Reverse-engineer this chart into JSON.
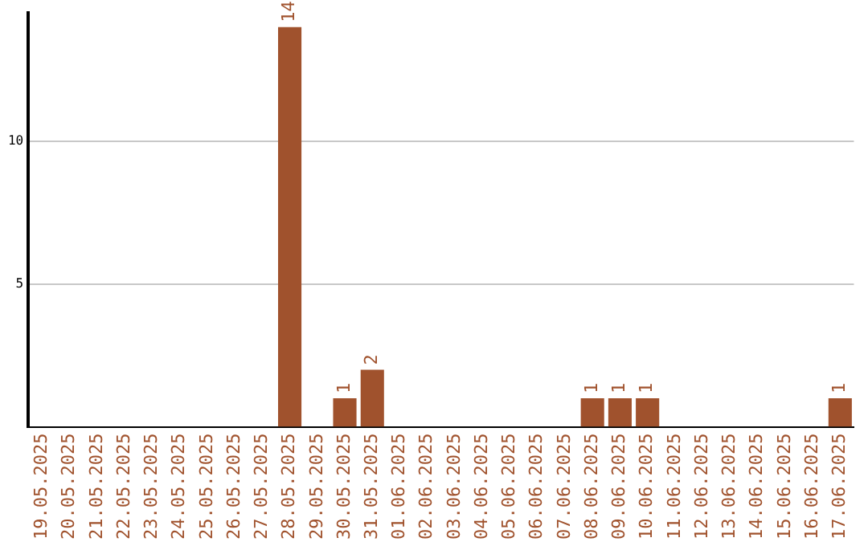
{
  "chart_data": {
    "type": "bar",
    "categories": [
      "19.05.2025",
      "20.05.2025",
      "21.05.2025",
      "22.05.2025",
      "23.05.2025",
      "24.05.2025",
      "25.05.2025",
      "26.05.2025",
      "27.05.2025",
      "28.05.2025",
      "29.05.2025",
      "30.05.2025",
      "31.05.2025",
      "01.06.2025",
      "02.06.2025",
      "03.06.2025",
      "04.06.2025",
      "05.06.2025",
      "06.06.2025",
      "07.06.2025",
      "08.06.2025",
      "09.06.2025",
      "10.06.2025",
      "11.06.2025",
      "12.06.2025",
      "13.06.2025",
      "14.06.2025",
      "15.06.2025",
      "16.06.2025",
      "17.06.2025"
    ],
    "values": [
      0,
      0,
      0,
      0,
      0,
      0,
      0,
      0,
      0,
      14,
      0,
      1,
      2,
      0,
      0,
      0,
      0,
      0,
      0,
      0,
      1,
      1,
      1,
      0,
      0,
      0,
      0,
      0,
      0,
      1
    ],
    "value_labels": [
      null,
      null,
      null,
      null,
      null,
      null,
      null,
      null,
      null,
      "14",
      null,
      "1",
      "2",
      null,
      null,
      null,
      null,
      null,
      null,
      null,
      "1",
      "1",
      "1",
      null,
      null,
      null,
      null,
      null,
      null,
      "1"
    ],
    "color": "#a0522d",
    "ylim": [
      0,
      14.5
    ],
    "yticks": [
      5,
      10
    ],
    "grid": "y",
    "legend": false
  }
}
